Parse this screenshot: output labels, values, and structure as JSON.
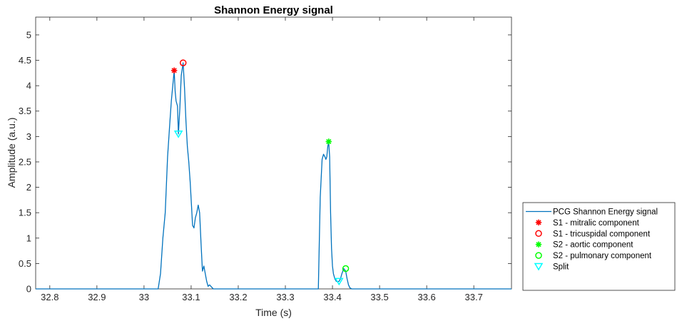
{
  "chart_data": {
    "type": "line",
    "title": "Shannon Energy signal",
    "xlabel": "Time (s)",
    "ylabel": "Amplitude (a.u.)",
    "xlim": [
      32.77,
      33.78
    ],
    "ylim": [
      0,
      5.35
    ],
    "xticks": [
      "32.8",
      "32.9",
      "33",
      "33.1",
      "33.2",
      "33.3",
      "33.4",
      "33.5",
      "33.6",
      "33.7"
    ],
    "xtick_values": [
      32.8,
      32.9,
      33.0,
      33.1,
      33.2,
      33.3,
      33.4,
      33.5,
      33.6,
      33.7
    ],
    "yticks": [
      "0",
      "0.5",
      "1",
      "1.5",
      "2",
      "2.5",
      "3",
      "3.5",
      "4",
      "4.5",
      "5"
    ],
    "ytick_values": [
      0,
      0.5,
      1,
      1.5,
      2,
      2.5,
      3,
      3.5,
      4,
      4.5,
      5
    ],
    "grid": false,
    "legend_position": "outside-right-bottom",
    "series": [
      {
        "name": "PCG Shannon Energy signal",
        "color": "#0072bd",
        "kind": "line",
        "x": [
          32.77,
          33.03,
          33.035,
          33.04,
          33.045,
          33.05,
          33.055,
          33.058,
          33.061,
          33.064,
          33.066,
          33.068,
          33.071,
          33.073,
          33.076,
          33.079,
          33.083,
          33.086,
          33.089,
          33.092,
          33.095,
          33.098,
          33.101,
          33.103,
          33.106,
          33.109,
          33.112,
          33.115,
          33.118,
          33.121,
          33.124,
          33.127,
          33.13,
          33.133,
          33.136,
          33.139,
          33.142,
          33.147,
          33.37,
          33.374,
          33.378,
          33.381,
          33.384,
          33.386,
          33.388,
          33.39,
          33.392,
          33.394,
          33.396,
          33.398,
          33.4,
          33.402,
          33.405,
          33.408,
          33.411,
          33.414,
          33.417,
          33.42,
          33.424,
          33.428,
          33.431,
          33.434,
          33.437,
          33.441,
          33.78
        ],
        "y": [
          0,
          0,
          0.3,
          1.0,
          1.5,
          2.6,
          3.3,
          3.7,
          4.0,
          4.3,
          3.9,
          3.7,
          3.6,
          3.05,
          3.55,
          4.2,
          4.45,
          3.95,
          3.3,
          2.8,
          2.5,
          2.1,
          1.6,
          1.25,
          1.2,
          1.4,
          1.5,
          1.65,
          1.5,
          0.9,
          0.35,
          0.45,
          0.3,
          0.15,
          0.05,
          0.08,
          0.05,
          0,
          0,
          1.8,
          2.55,
          2.65,
          2.6,
          2.55,
          2.6,
          2.8,
          2.9,
          2.6,
          1.5,
          0.8,
          0.45,
          0.3,
          0.2,
          0.15,
          0.14,
          0.15,
          0.2,
          0.3,
          0.4,
          0.35,
          0.2,
          0.08,
          0.02,
          0,
          0
        ]
      },
      {
        "name": "S1 - mitralic component",
        "color": "#ff0000",
        "kind": "marker",
        "marker": "asterisk",
        "x": [
          33.064
        ],
        "y": [
          4.3
        ]
      },
      {
        "name": "S1 - tricuspidal component",
        "color": "#ff0000",
        "kind": "marker",
        "marker": "circle",
        "x": [
          33.083
        ],
        "y": [
          4.45
        ]
      },
      {
        "name": "S2 - aortic component",
        "color": "#00ff00",
        "kind": "marker",
        "marker": "asterisk",
        "x": [
          33.392
        ],
        "y": [
          2.9
        ]
      },
      {
        "name": "S2 - pulmonary component",
        "color": "#00ff00",
        "kind": "marker",
        "marker": "circle",
        "x": [
          33.428
        ],
        "y": [
          0.4
        ]
      },
      {
        "name": "Split",
        "color": "#00ffff",
        "kind": "marker",
        "marker": "triangle-down",
        "x": [
          33.073,
          33.414
        ],
        "y": [
          3.05,
          0.15
        ]
      }
    ]
  }
}
